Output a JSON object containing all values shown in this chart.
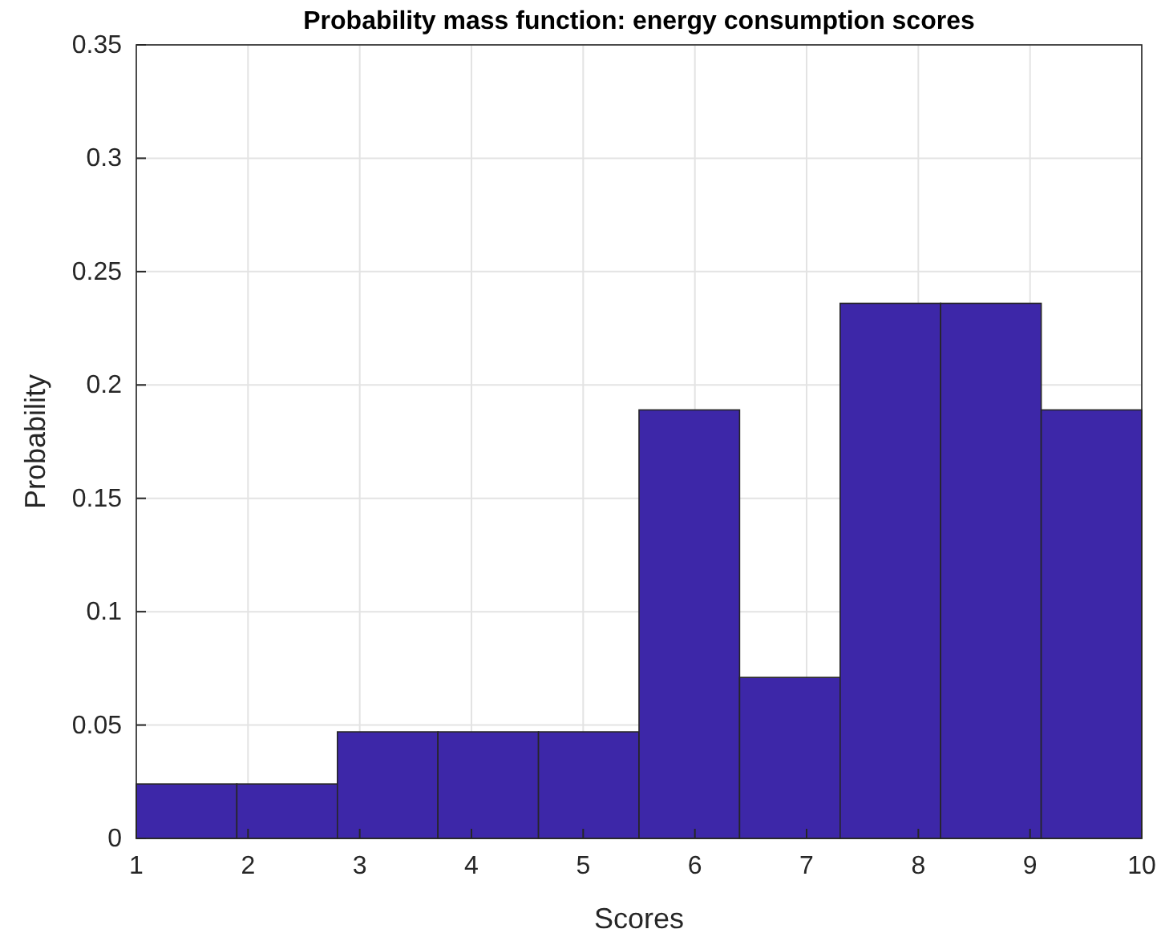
{
  "chart_data": {
    "type": "histogram",
    "title": "Probability mass function: energy consumption scores",
    "xlabel": "Scores",
    "ylabel": "Probability",
    "bins": [
      1,
      1.9,
      2.8,
      3.7,
      4.6,
      5.5,
      6.4,
      7.3,
      8.2,
      9.1,
      10
    ],
    "values": [
      0.024,
      0.024,
      0.047,
      0.047,
      0.047,
      0.189,
      0.071,
      0.236,
      0.236,
      0.189
    ],
    "color": "#3d27a8",
    "xlim": [
      1,
      10
    ],
    "xticks": [
      1,
      2,
      3,
      4,
      5,
      6,
      7,
      8,
      9,
      10
    ],
    "ylim": [
      0,
      0.35
    ],
    "yticks": [
      0,
      0.05,
      0.1,
      0.15,
      0.2,
      0.25,
      0.3,
      0.35
    ],
    "grid": true
  }
}
